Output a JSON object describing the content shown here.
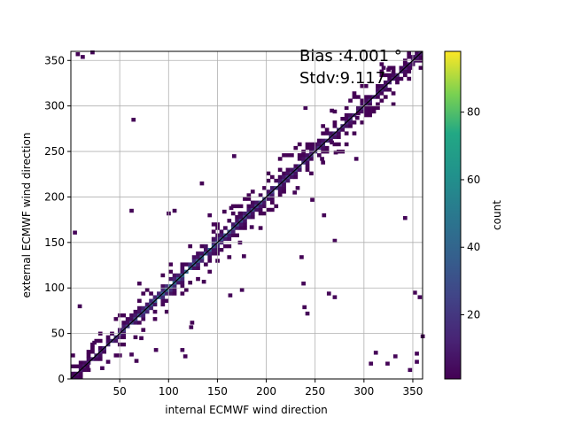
{
  "chart_data": {
    "type": "heatmap",
    "title": "",
    "xlabel": "internal ECMWF wind direction",
    "ylabel": "external ECMWF wind direction",
    "xlim": [
      0,
      360
    ],
    "ylim": [
      0,
      360
    ],
    "xticks": [
      50,
      100,
      150,
      200,
      250,
      300,
      350
    ],
    "yticks": [
      0,
      50,
      100,
      150,
      200,
      250,
      300,
      350
    ],
    "grid": true,
    "annotations": [
      "Bias :4.001 °",
      "Stdv:9.117"
    ],
    "colorbar": {
      "label": "count",
      "range": [
        1,
        98
      ],
      "ticks": [
        20,
        40,
        60,
        80
      ],
      "colormap": "viridis"
    },
    "reference_line": {
      "from": [
        0,
        0
      ],
      "to": [
        360,
        360
      ],
      "color": "#000000"
    },
    "density": {
      "bin_size": 4,
      "description_ridge": [
        {
          "x": 50,
          "y": 50,
          "count": 20
        },
        {
          "x": 100,
          "y": 100,
          "count": 45
        },
        {
          "x": 150,
          "y": 150,
          "count": 35
        },
        {
          "x": 200,
          "y": 200,
          "count": 25
        },
        {
          "x": 250,
          "y": 250,
          "count": 20
        },
        {
          "x": 300,
          "y": 300,
          "count": 15
        },
        {
          "x": 350,
          "y": 350,
          "count": 12
        }
      ],
      "outliers": [
        [
          5,
          355
        ],
        [
          10,
          352
        ],
        [
          20,
          357
        ],
        [
          238,
          296
        ],
        [
          165,
          243
        ],
        [
          265,
          258
        ],
        [
          132,
          213
        ],
        [
          60,
          183
        ],
        [
          98,
          180
        ],
        [
          104,
          183
        ],
        [
          155,
          182
        ],
        [
          183,
          165
        ],
        [
          245,
          195
        ],
        [
          257,
          178
        ],
        [
          173,
          96
        ],
        [
          161,
          90
        ],
        [
          268,
          88
        ],
        [
          262,
          92
        ],
        [
          350,
          93
        ],
        [
          355,
          88
        ],
        [
          352,
          17
        ],
        [
          352,
          26
        ],
        [
          330,
          23
        ],
        [
          345,
          8
        ],
        [
          358,
          45
        ],
        [
          305,
          15
        ],
        [
          310,
          27
        ],
        [
          322,
          15
        ],
        [
          85,
          30
        ],
        [
          60,
          25
        ],
        [
          70,
          43
        ],
        [
          65,
          18
        ],
        [
          2,
          159
        ],
        [
          318,
          340
        ],
        [
          323,
          338
        ],
        [
          340,
          345
        ],
        [
          345,
          340
        ],
        [
          36,
          17
        ],
        [
          30,
          10
        ],
        [
          22,
          38
        ],
        [
          15,
          12
        ],
        [
          62,
          283
        ],
        [
          7,
          78
        ],
        [
          68,
          103
        ],
        [
          112,
          30
        ],
        [
          115,
          23
        ],
        [
          121,
          55
        ],
        [
          122,
          60
        ],
        [
          140,
          178
        ],
        [
          162,
          186
        ],
        [
          134,
          105
        ],
        [
          171,
          148
        ],
        [
          175,
          133
        ],
        [
          171,
          180
        ],
        [
          255,
          240
        ],
        [
          269,
          247
        ],
        [
          360,
          246
        ],
        [
          292,
          290
        ],
        [
          291,
          285
        ],
        [
          340,
          175
        ],
        [
          290,
          240
        ],
        [
          230,
          208
        ],
        [
          227,
          203
        ],
        [
          236,
          103
        ],
        [
          240,
          70
        ],
        [
          237,
          77
        ],
        [
          265,
          293
        ],
        [
          268,
          150
        ],
        [
          234,
          132
        ]
      ]
    }
  }
}
